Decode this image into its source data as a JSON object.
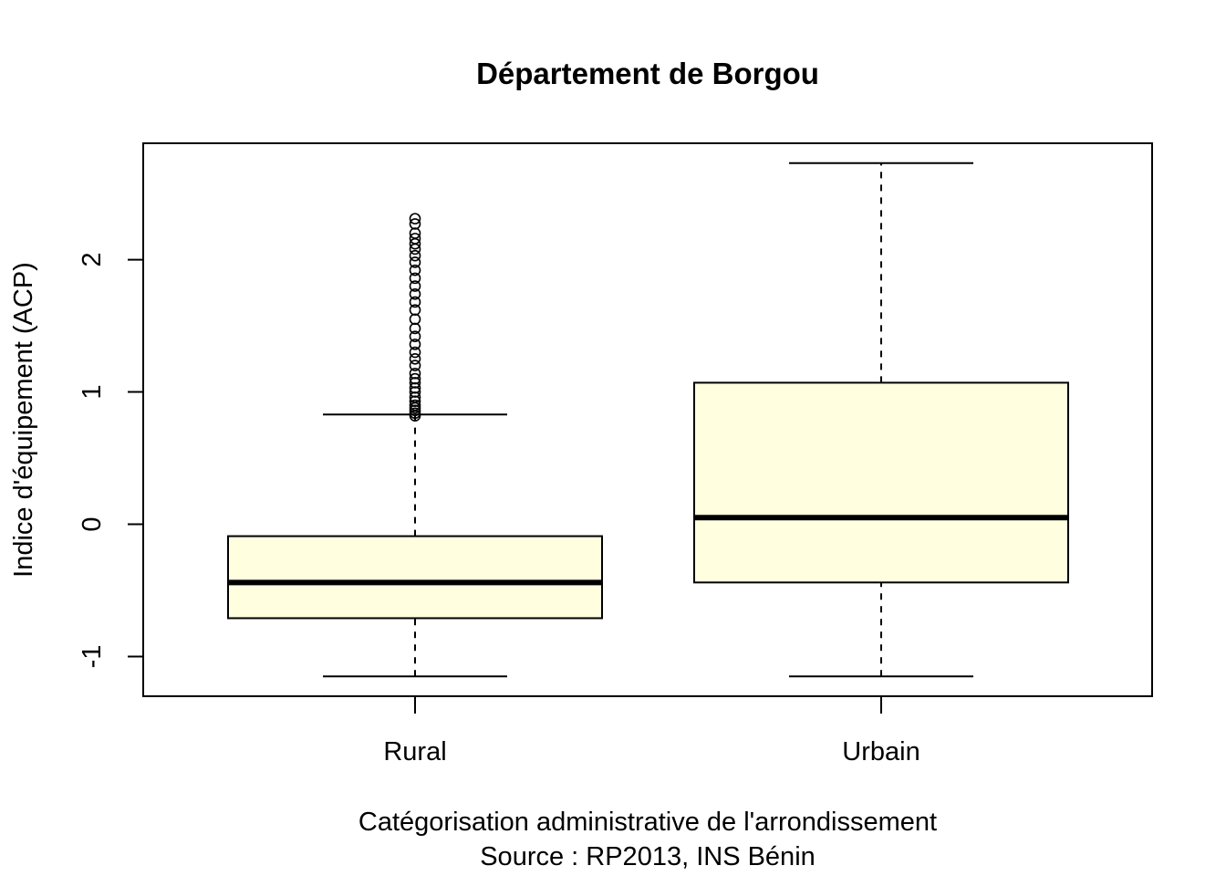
{
  "chart_data": {
    "type": "boxplot",
    "title": "Département de Borgou",
    "xlabel": "Catégorisation administrative de l'arrondissement",
    "subtitle": "Source : RP2013, INS Bénin",
    "ylabel": "Indice d'équipement (ACP)",
    "ylim": [
      -1.3,
      2.88
    ],
    "yticks": [
      -1,
      0,
      1,
      2
    ],
    "ytick_labels": [
      "-1",
      "0",
      "1",
      "2"
    ],
    "categories": [
      "Rural",
      "Urbain"
    ],
    "box_fill": "#ffffe0",
    "series": [
      {
        "category": "Rural",
        "whisker_low": -1.15,
        "q1": -0.71,
        "median": -0.44,
        "q3": -0.09,
        "whisker_high": 0.83,
        "outliers": [
          0.82,
          0.84,
          0.86,
          0.88,
          0.9,
          0.93,
          0.96,
          1.0,
          1.03,
          1.07,
          1.1,
          1.14,
          1.2,
          1.25,
          1.3,
          1.36,
          1.42,
          1.48,
          1.55,
          1.62,
          1.68,
          1.74,
          1.8,
          1.86,
          1.92,
          1.98,
          2.03,
          2.08,
          2.12,
          2.16,
          2.2,
          2.27,
          2.31
        ]
      },
      {
        "category": "Urbain",
        "whisker_low": -1.15,
        "q1": -0.44,
        "median": 0.05,
        "q3": 1.07,
        "whisker_high": 2.73,
        "outliers": []
      }
    ]
  }
}
